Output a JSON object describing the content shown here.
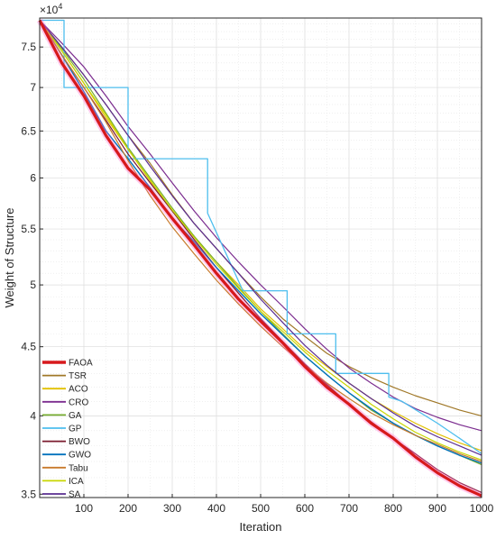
{
  "chart_data": {
    "type": "line",
    "title": "",
    "xlabel": "Iteration",
    "ylabel": "Weight of Structure",
    "y_exponent_label": "×10",
    "y_exponent_power": "4",
    "y_scale": "log",
    "xlim": [
      0,
      1000
    ],
    "ylim": [
      34800,
      78800
    ],
    "x_ticks": [
      100,
      200,
      300,
      400,
      500,
      600,
      700,
      800,
      900,
      1000
    ],
    "y_ticks": [
      {
        "value": 35000,
        "label": "3.5"
      },
      {
        "value": 40000,
        "label": "4"
      },
      {
        "value": 45000,
        "label": "4.5"
      },
      {
        "value": 50000,
        "label": "5"
      },
      {
        "value": 55000,
        "label": "5.5"
      },
      {
        "value": 60000,
        "label": "6"
      },
      {
        "value": 65000,
        "label": "6.5"
      },
      {
        "value": 70000,
        "label": "7"
      },
      {
        "value": 75000,
        "label": "7.5"
      }
    ],
    "grid": true,
    "legend_position": "bottom-left",
    "series": [
      {
        "name": "FAOA",
        "color": "#d7191c",
        "width": 3.2,
        "highlight": true,
        "x": [
          0,
          50,
          100,
          150,
          200,
          250,
          300,
          350,
          400,
          450,
          500,
          550,
          600,
          650,
          700,
          750,
          800,
          850,
          900,
          950,
          1000
        ],
        "y": [
          78500,
          73000,
          69000,
          64500,
          61000,
          58800,
          56000,
          53500,
          51000,
          48800,
          47000,
          45300,
          43500,
          42000,
          40800,
          39500,
          38500,
          37300,
          36300,
          35500,
          34900
        ]
      },
      {
        "name": "TSR",
        "color": "#a07828",
        "width": 1.2,
        "x": [
          0,
          50,
          100,
          150,
          200,
          250,
          300,
          350,
          400,
          450,
          500,
          550,
          600,
          650,
          700,
          750,
          800,
          850,
          900,
          950,
          1000
        ],
        "y": [
          78500,
          75000,
          71500,
          68000,
          64500,
          61500,
          58300,
          55500,
          53200,
          51000,
          49000,
          47200,
          45800,
          44500,
          43500,
          42700,
          42000,
          41400,
          40900,
          40400,
          40000
        ]
      },
      {
        "name": "ACO",
        "color": "#e2c000",
        "width": 1.2,
        "x": [
          0,
          50,
          100,
          150,
          200,
          250,
          300,
          350,
          400,
          450,
          500,
          550,
          600,
          650,
          700,
          750,
          800,
          850,
          900,
          950,
          1000
        ],
        "y": [
          78500,
          74500,
          70500,
          66500,
          63000,
          59700,
          56800,
          54300,
          52000,
          50000,
          48000,
          46400,
          44800,
          43500,
          42300,
          41200,
          40300,
          39500,
          38800,
          38200,
          37700
        ]
      },
      {
        "name": "CRO",
        "color": "#7b2c8f",
        "width": 1.2,
        "x": [
          0,
          50,
          100,
          150,
          200,
          250,
          300,
          350,
          400,
          450,
          500,
          550,
          600,
          650,
          700,
          750,
          800,
          850,
          900,
          950,
          1000
        ],
        "y": [
          78500,
          75500,
          72500,
          69000,
          65500,
          62500,
          59500,
          56700,
          54200,
          52000,
          50000,
          48200,
          46400,
          44800,
          43400,
          42300,
          41300,
          40500,
          39900,
          39400,
          39000
        ]
      },
      {
        "name": "GA",
        "color": "#77ac30",
        "width": 1.2,
        "x": [
          0,
          50,
          100,
          150,
          200,
          250,
          300,
          350,
          400,
          450,
          500,
          550,
          600,
          650,
          700,
          750,
          800,
          850,
          900,
          950,
          1000
        ],
        "y": [
          78500,
          74800,
          71000,
          67000,
          63200,
          60000,
          57000,
          54300,
          52000,
          49800,
          47800,
          46000,
          44300,
          42900,
          41600,
          40400,
          39500,
          38700,
          38000,
          37400,
          36800
        ]
      },
      {
        "name": "GP",
        "color": "#4dbeee",
        "width": 1.3,
        "step": true,
        "x": [
          0,
          55,
          55,
          100,
          200,
          200,
          380,
          380,
          460,
          560,
          560,
          620,
          670,
          670,
          700,
          790,
          790,
          820,
          900,
          950,
          1000
        ],
        "y": [
          78500,
          78500,
          70000,
          70000,
          70000,
          62000,
          62000,
          56500,
          49500,
          49500,
          46000,
          46000,
          46000,
          43000,
          43000,
          43000,
          41300,
          41000,
          39500,
          38500,
          37500
        ]
      },
      {
        "name": "BWO",
        "color": "#7a1a2e",
        "width": 1.2,
        "x": [
          0,
          50,
          100,
          150,
          200,
          250,
          300,
          350,
          400,
          450,
          500,
          550,
          600,
          650,
          700,
          750,
          800,
          850,
          900,
          950,
          1000
        ],
        "y": [
          78500,
          74000,
          70000,
          66200,
          62500,
          59500,
          56700,
          54000,
          51500,
          49300,
          47200,
          45400,
          43700,
          42200,
          40800,
          39600,
          38500,
          37500,
          36500,
          35700,
          35100
        ]
      },
      {
        "name": "GWO",
        "color": "#0072bd",
        "width": 1.4,
        "x": [
          0,
          50,
          100,
          150,
          200,
          250,
          300,
          350,
          400,
          450,
          500,
          550,
          600,
          650,
          700,
          750,
          800,
          850,
          900,
          950,
          1000
        ],
        "y": [
          78500,
          74000,
          69500,
          65000,
          62000,
          59000,
          56000,
          53800,
          51500,
          49500,
          47600,
          45900,
          44300,
          42900,
          41600,
          40500,
          39500,
          38700,
          38000,
          37400,
          36900
        ]
      },
      {
        "name": "Tabu",
        "color": "#c87a2c",
        "width": 1.2,
        "x": [
          0,
          50,
          100,
          150,
          200,
          250,
          300,
          350,
          400,
          450,
          500,
          550,
          600,
          650,
          700,
          750,
          800,
          850,
          900,
          950,
          1000
        ],
        "y": [
          78500,
          74000,
          70000,
          66000,
          61800,
          58200,
          55200,
          52700,
          50400,
          48400,
          46600,
          45000,
          43600,
          42300,
          41200,
          40200,
          39400,
          38700,
          38100,
          37500,
          37000
        ]
      },
      {
        "name": "ICA",
        "color": "#c8d600",
        "width": 1.2,
        "x": [
          0,
          50,
          100,
          150,
          200,
          250,
          300,
          350,
          400,
          450,
          500,
          550,
          600,
          650,
          700,
          750,
          800,
          850,
          900,
          950,
          1000
        ],
        "y": [
          78500,
          74500,
          70500,
          66800,
          63000,
          59800,
          56800,
          54200,
          51800,
          49700,
          47800,
          46200,
          44600,
          43200,
          42000,
          40800,
          39800,
          38900,
          38200,
          37600,
          37100
        ]
      },
      {
        "name": "SA",
        "color": "#5a2d91",
        "width": 1.2,
        "x": [
          0,
          50,
          100,
          150,
          200,
          250,
          300,
          350,
          400,
          450,
          500,
          550,
          600,
          650,
          700,
          750,
          800,
          850,
          900,
          950,
          1000
        ],
        "y": [
          78500,
          75000,
          71500,
          68000,
          64500,
          61200,
          58200,
          55500,
          53200,
          51000,
          48800,
          46900,
          45100,
          43600,
          42300,
          41200,
          40200,
          39300,
          38600,
          38000,
          37400
        ]
      }
    ]
  }
}
